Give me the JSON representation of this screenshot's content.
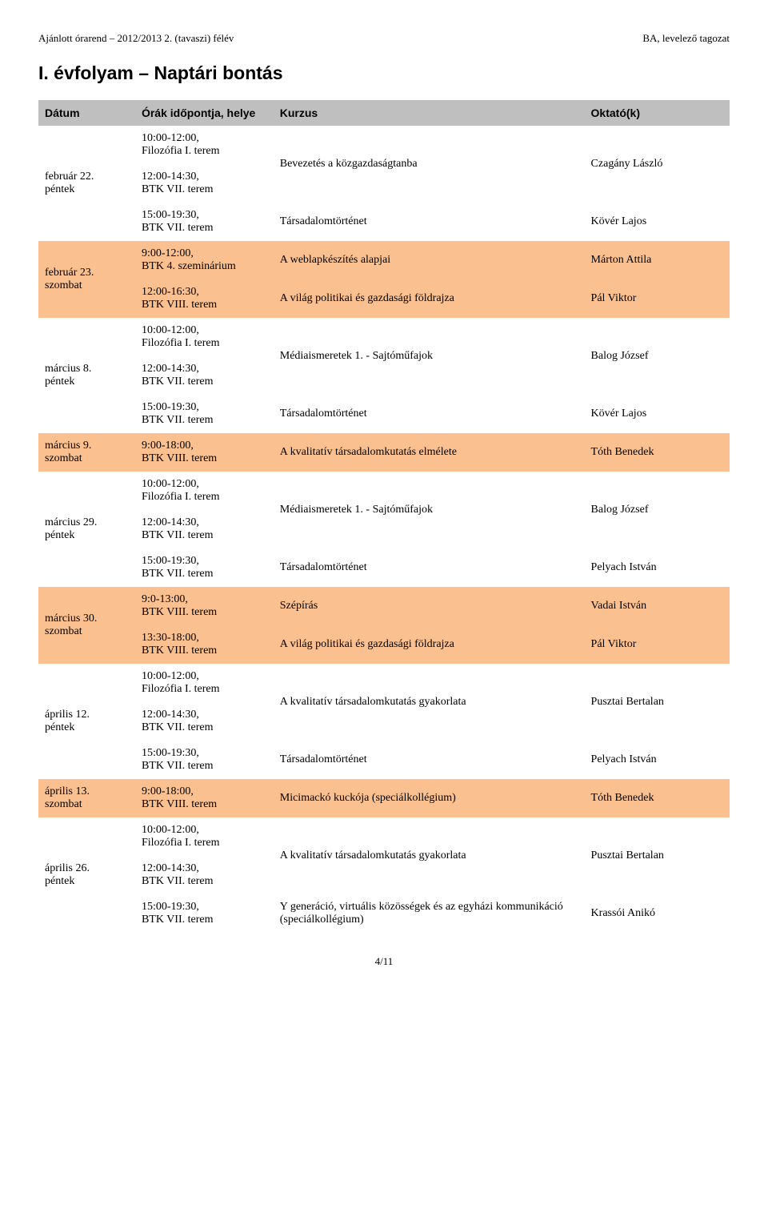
{
  "header": {
    "left": "Ajánlott órarend – 2012/2013 2. (tavaszi) félév",
    "right": "BA, levelező tagozat"
  },
  "title": "I. évfolyam – Naptári bontás",
  "columns": {
    "date": "Dátum",
    "time": "Órák időpontja, helye",
    "kurzus": "Kurzus",
    "oktato": "Oktató(k)"
  },
  "colors": {
    "header_bg": "#bfbfbf",
    "szombat_bg": "#fac090",
    "white": "#ffffff"
  },
  "rows": [
    {
      "date_lines": [
        "február 22.",
        "péntek"
      ],
      "date_rowspan": 3,
      "szombat": false,
      "time_lines": [
        "10:00-12:00,",
        "Filozófia I. terem"
      ],
      "kurzus": "Bevezetés a közgazdaságtanba",
      "kurzus_rowspan": 2,
      "oktato": "Czagány László"
    },
    {
      "time_lines": [
        "12:00-14:30,",
        "BTK VII. terem"
      ]
    },
    {
      "time_lines": [
        "15:00-19:30,",
        "BTK VII. terem"
      ],
      "kurzus": "Társadalomtörténet",
      "oktato": "Kövér Lajos"
    },
    {
      "date_lines": [
        "február 23.",
        "szombat"
      ],
      "date_rowspan": 2,
      "szombat": true,
      "time_lines": [
        "9:00-12:00,",
        "BTK 4. szeminárium"
      ],
      "kurzus": "A weblapkészítés alapjai",
      "oktato": "Márton Attila"
    },
    {
      "szombat": true,
      "time_lines": [
        "12:00-16:30,",
        "BTK VIII. terem"
      ],
      "kurzus": "A világ politikai és gazdasági földrajza",
      "oktato": "Pál Viktor"
    },
    {
      "date_lines": [
        "március 8.",
        "péntek"
      ],
      "date_rowspan": 3,
      "szombat": false,
      "time_lines": [
        "10:00-12:00,",
        "Filozófia I. terem"
      ],
      "kurzus": "Médiaismeretek 1. - Sajtóműfajok",
      "kurzus_rowspan": 2,
      "oktato": "Balog József"
    },
    {
      "time_lines": [
        "12:00-14:30,",
        "BTK VII. terem"
      ]
    },
    {
      "time_lines": [
        "15:00-19:30,",
        "BTK VII. terem"
      ],
      "kurzus": "Társadalomtörténet",
      "oktato": "Kövér Lajos"
    },
    {
      "date_lines": [
        "március 9.",
        "szombat"
      ],
      "szombat": true,
      "time_lines": [
        "9:00-18:00,",
        "BTK VIII. terem"
      ],
      "kurzus": "A kvalitatív társadalomkutatás elmélete",
      "oktato": "Tóth Benedek"
    },
    {
      "date_lines": [
        "március 29.",
        "péntek"
      ],
      "date_rowspan": 3,
      "szombat": false,
      "time_lines": [
        "10:00-12:00,",
        "Filozófia I. terem"
      ],
      "kurzus": "Médiaismeretek 1. - Sajtóműfajok",
      "kurzus_rowspan": 2,
      "oktato": "Balog József"
    },
    {
      "time_lines": [
        "12:00-14:30,",
        "BTK VII. terem"
      ]
    },
    {
      "time_lines": [
        "15:00-19:30,",
        "BTK VII. terem"
      ],
      "kurzus": "Társadalomtörténet",
      "oktato": "Pelyach István"
    },
    {
      "date_lines": [
        "március 30.",
        "szombat"
      ],
      "date_rowspan": 2,
      "szombat": true,
      "time_lines": [
        "9:0-13:00,",
        "BTK VIII. terem"
      ],
      "kurzus": "Szépírás",
      "oktato": "Vadai István"
    },
    {
      "szombat": true,
      "time_lines": [
        "13:30-18:00,",
        "BTK VIII. terem"
      ],
      "kurzus": "A világ politikai és gazdasági földrajza",
      "oktato": "Pál Viktor"
    },
    {
      "date_lines": [
        "április 12.",
        "péntek"
      ],
      "date_rowspan": 3,
      "szombat": false,
      "time_lines": [
        "10:00-12:00,",
        "Filozófia I. terem"
      ],
      "kurzus": "A kvalitatív társadalomkutatás gyakorlata",
      "kurzus_rowspan": 2,
      "oktato": "Pusztai Bertalan"
    },
    {
      "time_lines": [
        "12:00-14:30,",
        "BTK VII. terem"
      ]
    },
    {
      "time_lines": [
        "15:00-19:30,",
        "BTK VII. terem"
      ],
      "kurzus": "Társadalomtörténet",
      "oktato": "Pelyach István"
    },
    {
      "date_lines": [
        "április 13.",
        "szombat"
      ],
      "szombat": true,
      "time_lines": [
        "9:00-18:00,",
        "BTK VIII. terem"
      ],
      "kurzus": "Micimackó kuckója (speciálkollégium)",
      "oktato": "Tóth Benedek"
    },
    {
      "date_lines": [
        "április 26.",
        "péntek"
      ],
      "date_rowspan": 3,
      "szombat": false,
      "time_lines": [
        "10:00-12:00,",
        "Filozófia I. terem"
      ],
      "kurzus": "A kvalitatív társadalomkutatás gyakorlata",
      "kurzus_rowspan": 2,
      "oktato": "Pusztai Bertalan"
    },
    {
      "time_lines": [
        "12:00-14:30,",
        "BTK VII. terem"
      ]
    },
    {
      "time_lines": [
        "15:00-19:30,",
        "BTK VII. terem"
      ],
      "kurzus": "Y generáció, virtuális közösségek és az egyházi kommunikáció (speciálkollégium)",
      "oktato": "Krassói Anikó"
    }
  ],
  "page_number": "4/11"
}
